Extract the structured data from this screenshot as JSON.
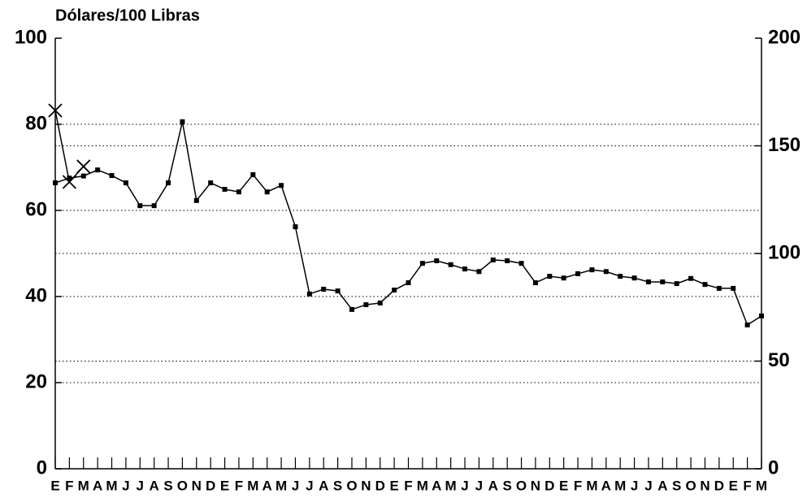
{
  "chart_data": {
    "type": "line",
    "y_label": "Dólares/100 Libras",
    "categories": [
      "E",
      "F",
      "M",
      "A",
      "M",
      "J",
      "J",
      "A",
      "S",
      "O",
      "N",
      "D",
      "E",
      "F",
      "M",
      "A",
      "M",
      "J",
      "J",
      "A",
      "S",
      "O",
      "N",
      "D",
      "E",
      "F",
      "M",
      "A",
      "M",
      "J",
      "J",
      "A",
      "S",
      "O",
      "N",
      "D",
      "E",
      "F",
      "M",
      "A",
      "M",
      "J",
      "J",
      "A",
      "S",
      "O",
      "N",
      "D",
      "E",
      "F",
      "M"
    ],
    "series": [
      {
        "color": "#000000",
        "marker": "square",
        "values": [
          66.4,
          67.5,
          68,
          69.4,
          68.1,
          66.4,
          61.1,
          61.1,
          66.4,
          80.6,
          62.3,
          66.4,
          64.9,
          64.3,
          68.3,
          64.3,
          65.8,
          56.2,
          40.6,
          41.7,
          41.3,
          37.0,
          38.1,
          38.5,
          41.5,
          43.2,
          47.7,
          48.3,
          47.4,
          46.4,
          45.8,
          48.5,
          48.3,
          47.7,
          43.2,
          44.7,
          44.3,
          45.3,
          46.2,
          45.8,
          44.7,
          44.3,
          43.4,
          43.4,
          43.0,
          44.2,
          42.8,
          41.9,
          41.9,
          33.4,
          35.5
        ]
      },
      {
        "color": "#000000",
        "marker": "x",
        "values": [
          83.2,
          66.6,
          70.2,
          null,
          null,
          null,
          null,
          null,
          null,
          null,
          null,
          null,
          null,
          null,
          null,
          null,
          null,
          null,
          null,
          null,
          null,
          null,
          null,
          null,
          null,
          null,
          null,
          null,
          null,
          null,
          null,
          null,
          null,
          null,
          null,
          null,
          null,
          null,
          null,
          null,
          null,
          null,
          null,
          null,
          null,
          null,
          null,
          null,
          null,
          null,
          null
        ]
      }
    ],
    "ylim": [
      0,
      100
    ],
    "yticks": [
      0,
      20,
      40,
      60,
      80,
      100
    ],
    "y2lim": [
      0,
      200
    ],
    "y2ticks": [
      0,
      50,
      100,
      150,
      200
    ],
    "grid": true
  }
}
